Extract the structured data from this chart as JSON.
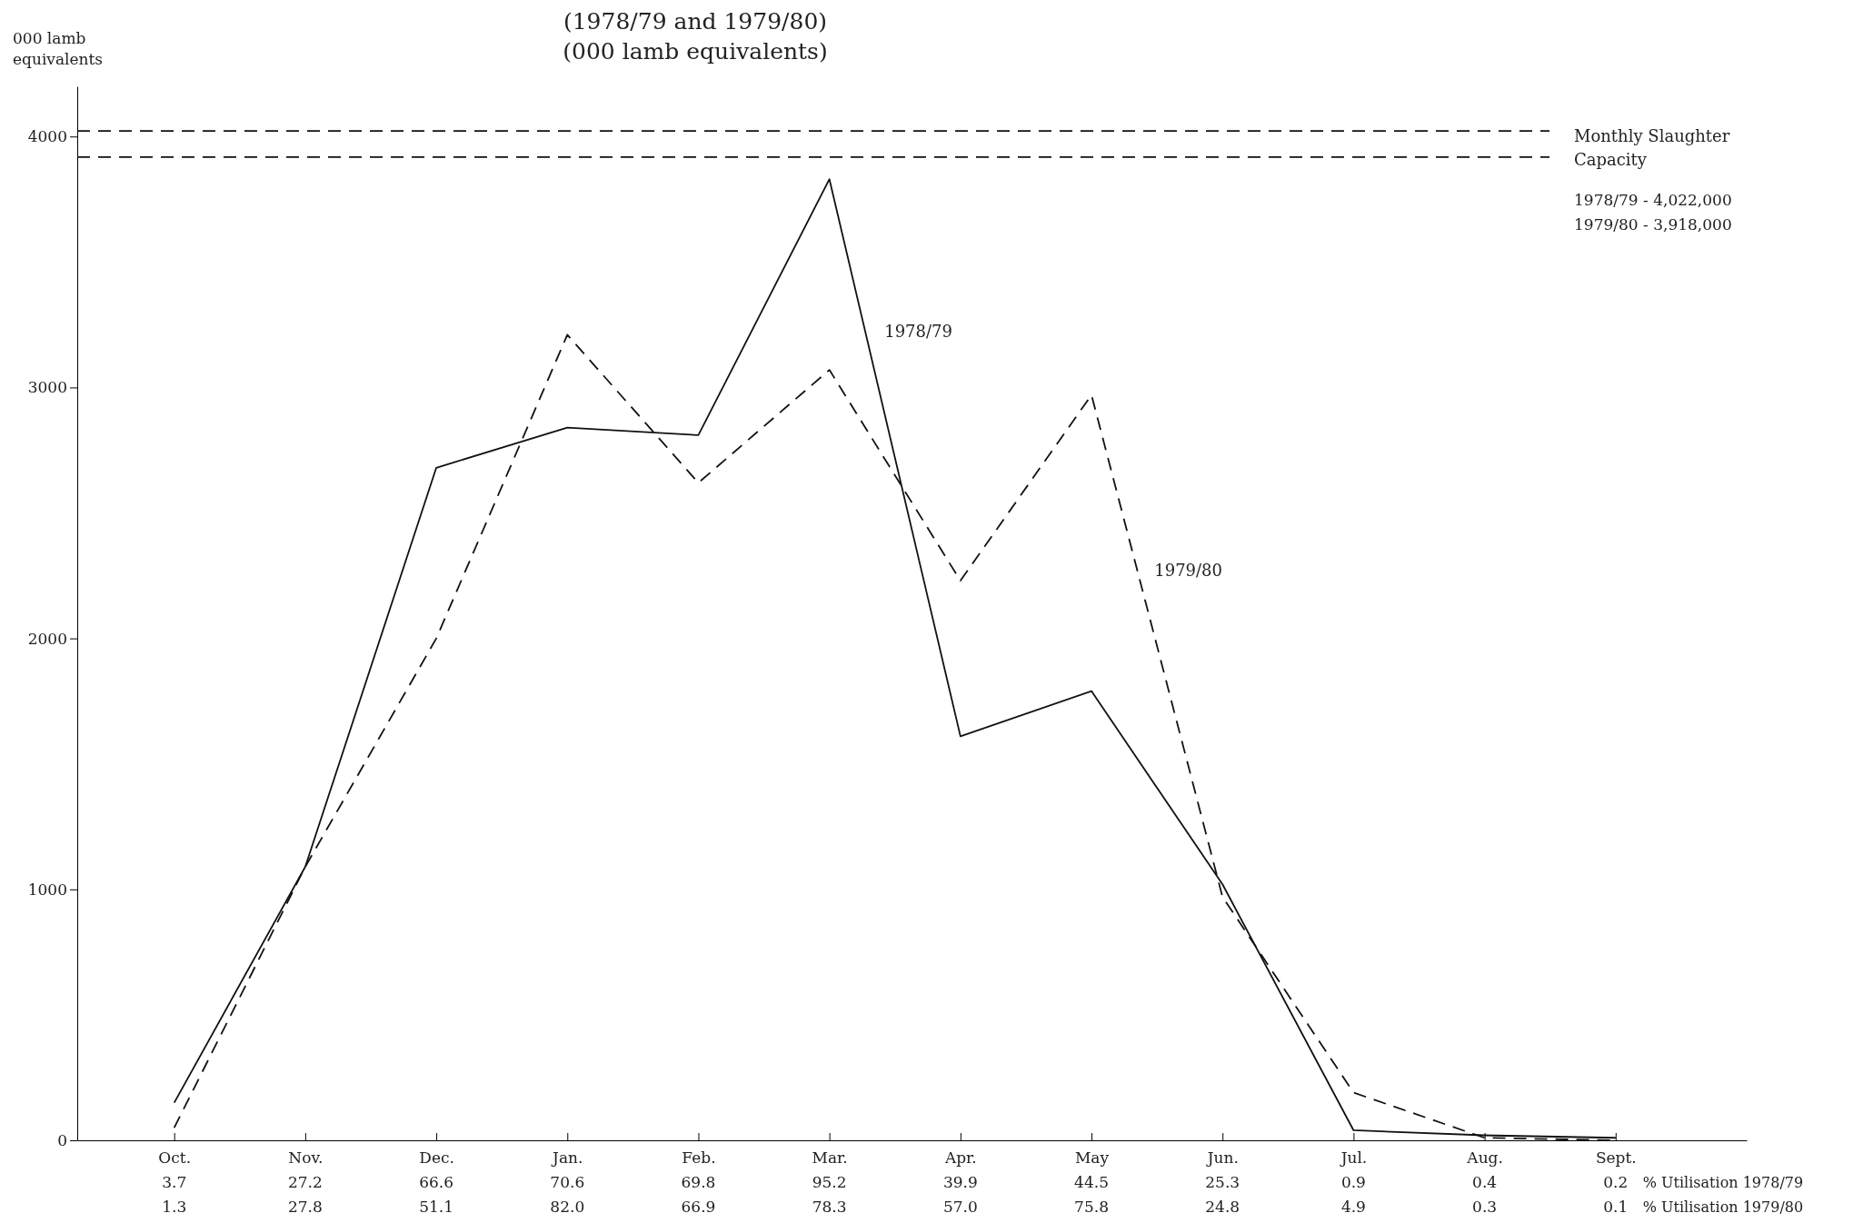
{
  "chart_data": [
    {
      "type": "line",
      "title": "(1978/79 and 1979/80)",
      "subtitle": "(000 lamb equivalents)",
      "ylabel": "000 lamb equivalents",
      "categories": [
        "Oct.",
        "Nov.",
        "Dec.",
        "Jan.",
        "Feb.",
        "Mar.",
        "Apr.",
        "May",
        "Jun.",
        "Jul.",
        "Aug.",
        "Sept."
      ],
      "series": [
        {
          "name": "1978/79",
          "color": "#111111",
          "line_style": "solid",
          "values": [
            150,
            1090,
            2680,
            2840,
            2810,
            3830,
            1610,
            1790,
            1020,
            40,
            20,
            10
          ]
        },
        {
          "name": "1979/80",
          "color": "#111111",
          "line_style": "dashed",
          "values": [
            50,
            1090,
            2000,
            3210,
            2620,
            3070,
            2230,
            2970,
            970,
            190,
            10,
            0
          ]
        }
      ],
      "ylim": [
        0,
        4200
      ],
      "yticks": [
        0,
        1000,
        2000,
        3000,
        4000
      ],
      "grid": false,
      "legend": false,
      "marker": "none",
      "ref_lines": [
        {
          "axis": "y",
          "value": 4022,
          "line_style": "dashed",
          "color": "#111111"
        },
        {
          "axis": "y",
          "value": 3918,
          "line_style": "dashed",
          "color": "#111111"
        }
      ],
      "annotations": [
        "Monthly Slaughter Capacity",
        "1978/79 - 4,022,000",
        "1979/80 - 3,918,000"
      ]
    },
    {
      "type": "other",
      "annotations": [
        "3.7",
        "27.2",
        "66.6",
        "70.6",
        "69.8",
        "95.2",
        "39.9",
        "44.5",
        "25.3",
        "0.9",
        "0.4",
        "0.2",
        "% Utilisation 1978/79",
        "1.3",
        "27.8",
        "51.1",
        "82.0",
        "66.9",
        "78.3",
        "57.0",
        "75.8",
        "24.8",
        "4.9",
        "0.3",
        "0.1",
        "% Utilisation 1979/80"
      ]
    }
  ]
}
